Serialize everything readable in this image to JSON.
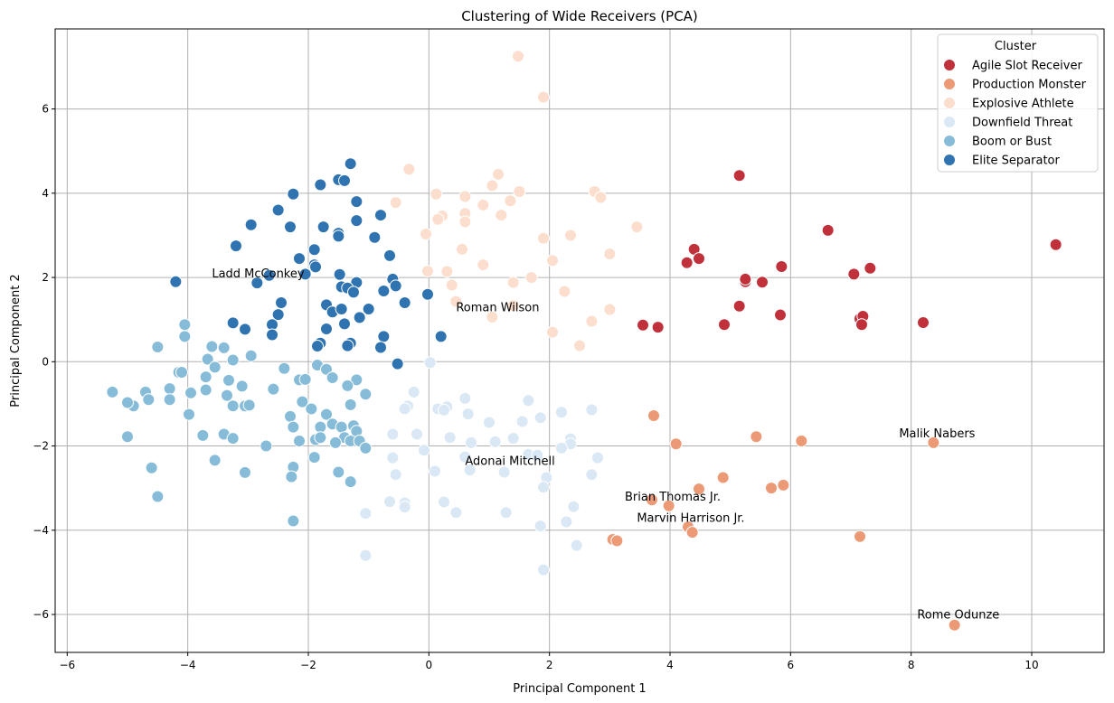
{
  "chart_data": {
    "type": "scatter",
    "title": "Clustering of Wide Receivers (PCA)",
    "xlabel": "Principal Component 1",
    "ylabel": "Principal Component 2",
    "xlim": [
      -6.2,
      11.2
    ],
    "ylim": [
      -6.9,
      7.9
    ],
    "xticks": [
      -6,
      -4,
      -2,
      0,
      2,
      4,
      6,
      8,
      10
    ],
    "yticks": [
      -6,
      -4,
      -2,
      0,
      2,
      4,
      6
    ],
    "grid": true,
    "legend": {
      "title": "Cluster",
      "position": "top-right"
    },
    "series": [
      {
        "name": "Agile Slot Receiver",
        "color": "#c0313b",
        "points": [
          [
            5.15,
            4.42
          ],
          [
            6.62,
            3.12
          ],
          [
            10.4,
            2.78
          ],
          [
            4.4,
            2.67
          ],
          [
            4.28,
            2.35
          ],
          [
            4.48,
            2.45
          ],
          [
            5.85,
            2.26
          ],
          [
            7.32,
            2.22
          ],
          [
            7.05,
            2.08
          ],
          [
            5.25,
            1.9
          ],
          [
            5.25,
            1.96
          ],
          [
            5.53,
            1.89
          ],
          [
            5.15,
            1.32
          ],
          [
            5.83,
            1.11
          ],
          [
            7.15,
            1.02
          ],
          [
            7.2,
            1.08
          ],
          [
            7.18,
            0.88
          ],
          [
            8.2,
            0.93
          ],
          [
            4.9,
            0.88
          ],
          [
            3.55,
            0.87
          ],
          [
            3.8,
            0.82
          ]
        ]
      },
      {
        "name": "Production Monster",
        "color": "#ec9a76",
        "points": [
          [
            3.73,
            -1.28
          ],
          [
            4.1,
            -1.95
          ],
          [
            5.43,
            -1.78
          ],
          [
            6.18,
            -1.88
          ],
          [
            8.37,
            -1.92
          ],
          [
            4.88,
            -2.75
          ],
          [
            4.48,
            -3.02
          ],
          [
            5.88,
            -2.93
          ],
          [
            5.68,
            -3.0
          ],
          [
            3.7,
            -3.28
          ],
          [
            3.98,
            -3.42
          ],
          [
            4.3,
            -3.92
          ],
          [
            4.37,
            -4.05
          ],
          [
            3.05,
            -4.22
          ],
          [
            3.12,
            -4.25
          ],
          [
            7.15,
            -4.15
          ],
          [
            8.72,
            -6.25
          ]
        ]
      },
      {
        "name": "Explosive Athlete",
        "color": "#fbdecd",
        "points": [
          [
            1.48,
            7.25
          ],
          [
            1.9,
            6.28
          ],
          [
            -0.33,
            4.57
          ],
          [
            1.15,
            4.45
          ],
          [
            1.05,
            4.18
          ],
          [
            1.5,
            4.04
          ],
          [
            2.75,
            4.04
          ],
          [
            2.85,
            3.9
          ],
          [
            0.12,
            3.98
          ],
          [
            0.6,
            3.92
          ],
          [
            -0.55,
            3.78
          ],
          [
            0.9,
            3.72
          ],
          [
            1.35,
            3.82
          ],
          [
            0.6,
            3.52
          ],
          [
            0.22,
            3.46
          ],
          [
            1.2,
            3.48
          ],
          [
            0.15,
            3.38
          ],
          [
            0.6,
            3.32
          ],
          [
            3.45,
            3.2
          ],
          [
            -0.05,
            3.03
          ],
          [
            1.9,
            2.93
          ],
          [
            2.35,
            3.0
          ],
          [
            0.55,
            2.67
          ],
          [
            3.0,
            2.56
          ],
          [
            0.9,
            2.3
          ],
          [
            2.05,
            2.4
          ],
          [
            -0.02,
            2.15
          ],
          [
            0.3,
            2.14
          ],
          [
            1.7,
            2.0
          ],
          [
            1.4,
            1.88
          ],
          [
            0.38,
            1.82
          ],
          [
            2.25,
            1.67
          ],
          [
            0.45,
            1.43
          ],
          [
            1.4,
            1.33
          ],
          [
            3.0,
            1.24
          ],
          [
            1.05,
            1.06
          ],
          [
            2.7,
            0.96
          ],
          [
            2.05,
            0.7
          ],
          [
            2.5,
            0.38
          ]
        ]
      },
      {
        "name": "Downfield Threat",
        "color": "#d9e8f4",
        "points": [
          [
            0.02,
            -0.02
          ],
          [
            -0.25,
            -0.72
          ],
          [
            0.6,
            -0.87
          ],
          [
            1.65,
            -0.92
          ],
          [
            2.7,
            -1.14
          ],
          [
            -0.35,
            -1.05
          ],
          [
            -0.4,
            -1.12
          ],
          [
            0.15,
            -1.12
          ],
          [
            0.3,
            -1.07
          ],
          [
            0.25,
            -1.15
          ],
          [
            0.65,
            -1.24
          ],
          [
            2.2,
            -1.2
          ],
          [
            1.85,
            -1.33
          ],
          [
            1.0,
            -1.44
          ],
          [
            1.55,
            -1.42
          ],
          [
            -0.2,
            -1.72
          ],
          [
            -0.6,
            -1.72
          ],
          [
            0.35,
            -1.8
          ],
          [
            0.7,
            -1.92
          ],
          [
            1.1,
            -1.9
          ],
          [
            1.4,
            -1.82
          ],
          [
            2.35,
            -1.83
          ],
          [
            2.35,
            -1.95
          ],
          [
            2.2,
            -2.05
          ],
          [
            -0.08,
            -2.1
          ],
          [
            0.6,
            -2.26
          ],
          [
            1.65,
            -2.2
          ],
          [
            1.8,
            -2.22
          ],
          [
            2.8,
            -2.28
          ],
          [
            -0.6,
            -2.28
          ],
          [
            0.68,
            -2.57
          ],
          [
            0.1,
            -2.6
          ],
          [
            1.25,
            -2.62
          ],
          [
            -0.55,
            -2.68
          ],
          [
            2.7,
            -2.68
          ],
          [
            1.95,
            -2.75
          ],
          [
            1.9,
            -2.98
          ],
          [
            -0.65,
            -3.32
          ],
          [
            -0.4,
            -3.35
          ],
          [
            0.25,
            -3.33
          ],
          [
            2.4,
            -3.44
          ],
          [
            -0.4,
            -3.45
          ],
          [
            0.45,
            -3.58
          ],
          [
            1.28,
            -3.58
          ],
          [
            -1.05,
            -3.6
          ],
          [
            2.28,
            -3.8
          ],
          [
            1.85,
            -3.9
          ],
          [
            2.45,
            -4.36
          ],
          [
            -1.05,
            -4.6
          ],
          [
            1.9,
            -4.94
          ]
        ]
      },
      {
        "name": "Boom or Bust",
        "color": "#87bcd9",
        "points": [
          [
            -4.05,
            0.88
          ],
          [
            -4.5,
            0.35
          ],
          [
            -4.05,
            0.6
          ],
          [
            -3.6,
            0.36
          ],
          [
            -3.4,
            0.33
          ],
          [
            -2.95,
            0.14
          ],
          [
            -3.67,
            0.06
          ],
          [
            -3.25,
            0.04
          ],
          [
            -3.55,
            -0.13
          ],
          [
            -2.4,
            -0.16
          ],
          [
            -1.85,
            -0.08
          ],
          [
            -4.15,
            -0.25
          ],
          [
            -4.1,
            -0.25
          ],
          [
            -3.7,
            -0.36
          ],
          [
            -3.32,
            -0.44
          ],
          [
            -2.15,
            -0.43
          ],
          [
            -2.05,
            -0.42
          ],
          [
            -1.7,
            -0.18
          ],
          [
            -1.6,
            -0.38
          ],
          [
            -1.2,
            -0.43
          ],
          [
            -4.3,
            -0.64
          ],
          [
            -3.7,
            -0.67
          ],
          [
            -3.1,
            -0.58
          ],
          [
            -2.58,
            -0.65
          ],
          [
            -1.35,
            -0.57
          ],
          [
            -4.7,
            -0.72
          ],
          [
            -5.25,
            -0.72
          ],
          [
            -3.95,
            -0.74
          ],
          [
            -3.35,
            -0.8
          ],
          [
            -1.05,
            -0.77
          ],
          [
            -4.9,
            -1.05
          ],
          [
            -5.0,
            -0.97
          ],
          [
            -4.65,
            -0.9
          ],
          [
            -4.3,
            -0.9
          ],
          [
            -2.1,
            -0.95
          ],
          [
            -3.25,
            -1.05
          ],
          [
            -3.05,
            -1.05
          ],
          [
            -2.98,
            -1.03
          ],
          [
            -1.95,
            -1.12
          ],
          [
            -1.3,
            -1.02
          ],
          [
            -3.98,
            -1.25
          ],
          [
            -2.3,
            -1.3
          ],
          [
            -1.7,
            -1.25
          ],
          [
            -2.25,
            -1.55
          ],
          [
            -1.8,
            -1.55
          ],
          [
            -1.6,
            -1.48
          ],
          [
            -1.45,
            -1.55
          ],
          [
            -1.25,
            -1.52
          ],
          [
            -1.2,
            -1.65
          ],
          [
            -3.75,
            -1.75
          ],
          [
            -3.4,
            -1.72
          ],
          [
            -3.25,
            -1.82
          ],
          [
            -2.15,
            -1.88
          ],
          [
            -1.88,
            -1.85
          ],
          [
            -1.8,
            -1.8
          ],
          [
            -1.4,
            -1.8
          ],
          [
            -1.55,
            -1.92
          ],
          [
            -1.3,
            -1.88
          ],
          [
            -1.15,
            -1.88
          ],
          [
            -1.05,
            -2.05
          ],
          [
            -5.0,
            -1.78
          ],
          [
            -2.7,
            -2.0
          ],
          [
            -1.9,
            -2.27
          ],
          [
            -2.25,
            -2.5
          ],
          [
            -1.5,
            -2.62
          ],
          [
            -3.05,
            -2.63
          ],
          [
            -4.6,
            -2.52
          ],
          [
            -2.28,
            -2.73
          ],
          [
            -3.55,
            -2.34
          ],
          [
            -1.3,
            -2.85
          ],
          [
            -4.5,
            -3.2
          ],
          [
            -2.25,
            -3.78
          ]
        ]
      },
      {
        "name": "Elite Separator",
        "color": "#2f73b0",
        "points": [
          [
            -1.3,
            4.7
          ],
          [
            -1.5,
            4.32
          ],
          [
            -1.4,
            4.3
          ],
          [
            -1.8,
            4.2
          ],
          [
            -2.25,
            3.98
          ],
          [
            -1.2,
            3.8
          ],
          [
            -2.5,
            3.6
          ],
          [
            -0.8,
            3.48
          ],
          [
            -1.2,
            3.35
          ],
          [
            -2.95,
            3.25
          ],
          [
            -2.3,
            3.2
          ],
          [
            -1.75,
            3.2
          ],
          [
            -1.5,
            3.05
          ],
          [
            -1.5,
            2.98
          ],
          [
            -0.9,
            2.95
          ],
          [
            -3.2,
            2.75
          ],
          [
            -1.9,
            2.66
          ],
          [
            -0.65,
            2.52
          ],
          [
            -2.15,
            2.45
          ],
          [
            -1.9,
            2.3
          ],
          [
            -1.88,
            2.25
          ],
          [
            -2.65,
            2.05
          ],
          [
            -2.05,
            2.08
          ],
          [
            -1.48,
            2.07
          ],
          [
            -0.6,
            1.96
          ],
          [
            -4.2,
            1.9
          ],
          [
            -2.85,
            1.87
          ],
          [
            -1.2,
            1.88
          ],
          [
            -1.45,
            1.78
          ],
          [
            -1.35,
            1.75
          ],
          [
            -1.25,
            1.65
          ],
          [
            -0.55,
            1.8
          ],
          [
            -0.75,
            1.68
          ],
          [
            -0.02,
            1.6
          ],
          [
            -2.45,
            1.4
          ],
          [
            -1.7,
            1.35
          ],
          [
            -0.4,
            1.4
          ],
          [
            -1.6,
            1.18
          ],
          [
            -1.45,
            1.25
          ],
          [
            -1.0,
            1.25
          ],
          [
            -2.5,
            1.12
          ],
          [
            -1.15,
            1.05
          ],
          [
            -3.25,
            0.92
          ],
          [
            -2.6,
            0.88
          ],
          [
            -1.4,
            0.9
          ],
          [
            -3.05,
            0.77
          ],
          [
            -1.7,
            0.78
          ],
          [
            -2.6,
            0.64
          ],
          [
            -0.75,
            0.6
          ],
          [
            0.2,
            0.6
          ],
          [
            -1.8,
            0.44
          ],
          [
            -1.85,
            0.37
          ],
          [
            -1.3,
            0.44
          ],
          [
            -1.35,
            0.38
          ],
          [
            -0.8,
            0.34
          ],
          [
            -0.52,
            -0.05
          ]
        ]
      }
    ],
    "annotations": [
      {
        "text": "Ladd McConkey",
        "x": -3.6,
        "y": 2.0
      },
      {
        "text": "Roman Wilson",
        "x": 0.45,
        "y": 1.2
      },
      {
        "text": "Malik Nabers",
        "x": 7.8,
        "y": -1.8
      },
      {
        "text": "Adonai Mitchell",
        "x": 0.6,
        "y": -2.45
      },
      {
        "text": "Brian Thomas Jr.",
        "x": 3.25,
        "y": -3.3
      },
      {
        "text": "Marvin Harrison Jr.",
        "x": 3.45,
        "y": -3.8
      },
      {
        "text": "Rome Odunze",
        "x": 8.1,
        "y": -6.1
      }
    ]
  }
}
